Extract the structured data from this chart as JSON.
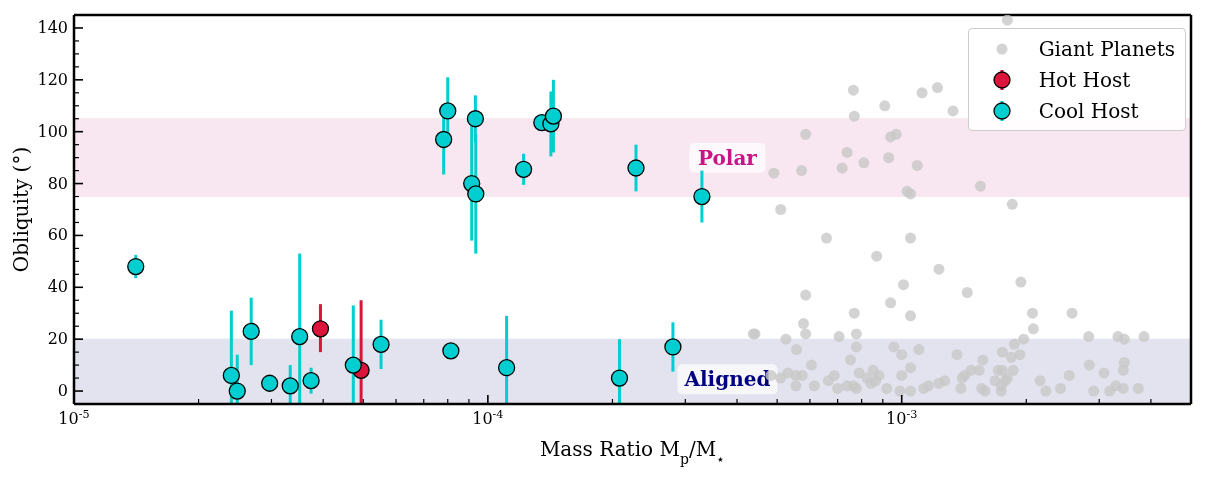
{
  "chart_data": {
    "type": "scatter",
    "xlabel": "Mass Ratio M$_{p}$/M$_{⋆}$",
    "ylabel": "Obliquity (°)",
    "log": "x",
    "legend": "top right",
    "marker": "circle",
    "xlim": [
      1e-05,
      0.005
    ],
    "xticks": [
      {
        "value": 1e-05,
        "label": "10$^{-5}$"
      },
      {
        "value": 2e-05,
        "label": null
      },
      {
        "value": 3e-05,
        "label": null
      },
      {
        "value": 4e-05,
        "label": null
      },
      {
        "value": 5e-05,
        "label": null
      },
      {
        "value": 6e-05,
        "label": null
      },
      {
        "value": 7e-05,
        "label": null
      },
      {
        "value": 8e-05,
        "label": null
      },
      {
        "value": 9e-05,
        "label": null
      },
      {
        "value": 0.0001,
        "label": "10$^{-4}$"
      },
      {
        "value": 0.0002,
        "label": null
      },
      {
        "value": 0.0003,
        "label": null
      },
      {
        "value": 0.0004,
        "label": null
      },
      {
        "value": 0.0005,
        "label": null
      },
      {
        "value": 0.0006,
        "label": null
      },
      {
        "value": 0.0007,
        "label": null
      },
      {
        "value": 0.0008,
        "label": null
      },
      {
        "value": 0.0009,
        "label": null
      },
      {
        "value": 0.001,
        "label": "10$^{-3}$"
      },
      {
        "value": 0.002,
        "label": null
      },
      {
        "value": 0.003,
        "label": null
      },
      {
        "value": 0.004,
        "label": null
      }
    ],
    "ylim": [
      -5,
      145
    ],
    "yticks": [
      0,
      {
        "value": 5,
        "label": null
      },
      {
        "value": 10,
        "label": null
      },
      {
        "value": 15,
        "label": null
      },
      20,
      {
        "value": 25,
        "label": null
      },
      {
        "value": 30,
        "label": null
      },
      {
        "value": 35,
        "label": null
      },
      40,
      {
        "value": 45,
        "label": null
      },
      {
        "value": 50,
        "label": null
      },
      {
        "value": 55,
        "label": null
      },
      60,
      {
        "value": 65,
        "label": null
      },
      {
        "value": 70,
        "label": null
      },
      {
        "value": 75,
        "label": null
      },
      80,
      {
        "value": 85,
        "label": null
      },
      {
        "value": 90,
        "label": null
      },
      {
        "value": 95,
        "label": null
      },
      100,
      {
        "value": 105,
        "label": null
      },
      {
        "value": 110,
        "label": null
      },
      {
        "value": 115,
        "label": null
      },
      120,
      {
        "value": 125,
        "label": null
      },
      {
        "value": 130,
        "label": null
      },
      {
        "value": 135,
        "label": null
      },
      140
    ],
    "bands": [
      {
        "axis": "y",
        "from": 75,
        "to": 105,
        "label": "Polar",
        "color": "#f8e6f0"
      },
      {
        "axis": "y",
        "from": -5,
        "to": 20,
        "label": "Aligned",
        "color": "#e3e3ef"
      }
    ],
    "series": [
      {
        "name": "Giant Planets",
        "color": "#c8c8c8",
        "x": [
          0.0018,
          0.000764,
          0.00112,
          0.00122,
          0.00091,
          0.00133,
          0.000768,
          0.000586,
          0.00097,
          0.00094,
          0.000738,
          0.00081,
          0.00093,
          0.00109,
          0.000491,
          0.000573,
          0.000718,
          0.00155,
          0.00103,
          0.00105,
          0.00051,
          0.00185,
          0.000658,
          0.00105,
          0.00087,
          0.00123,
          0.00194,
          0.00101,
          0.00144,
          0.000586,
          0.00094,
          0.00207,
          0.00258,
          0.000768,
          0.00105,
          0.000579,
          0.00208,
          0.000438,
          0.000442,
          0.000586,
          0.000706,
          0.000777,
          0.00283,
          0.00333,
          0.00345,
          0.00385,
          0.000525,
          0.00197,
          0.00187,
          0.000557,
          0.000777,
          0.000957,
          0.00175,
          0.0011,
          0.001,
          0.00184,
          0.00193,
          0.00136,
          0.00157,
          0.000752,
          0.00284,
          0.00345,
          0.000605,
          0.00105,
          0.00147,
          0.00154,
          0.00171,
          0.00175,
          0.00186,
          0.00308,
          0.00343,
          0.000531,
          0.000555,
          0.000575,
          0.000687,
          0.000789,
          0.000853,
          0.000881,
          0.001,
          0.00254,
          0.000483,
          0.00051,
          0.000824,
          0.000865,
          0.000842,
          0.000665,
          0.00127,
          0.00123,
          0.0014,
          0.00142,
          0.00168,
          0.00178,
          0.0018,
          0.00216,
          0.00343,
          0.00329,
          0.00318,
          0.00291,
          0.00373,
          0.00242,
          0.00223,
          0.000555,
          0.000615,
          0.0007,
          0.000738,
          0.000764,
          0.000777,
          0.00092,
          0.00099,
          0.00105,
          0.00113,
          0.00116,
          0.00139,
          0.00156,
          0.00159,
          0.00174,
          0.00174
        ],
        "values": [
          143,
          116,
          115,
          117,
          110,
          108,
          106,
          99,
          99,
          98,
          92,
          88,
          90,
          87,
          84,
          85,
          86,
          79,
          77,
          76,
          70,
          72,
          59,
          59,
          52,
          47,
          42,
          41,
          38,
          37,
          34,
          30,
          30,
          30,
          29,
          26,
          24,
          22,
          22,
          22,
          21,
          22,
          21,
          21,
          20,
          21,
          20,
          20,
          18,
          16,
          17,
          17,
          15,
          16,
          14,
          13,
          14,
          14,
          12,
          12,
          10,
          11,
          10,
          9,
          8,
          8,
          8,
          8,
          8,
          7,
          8,
          7,
          6,
          6,
          6,
          7,
          8,
          6,
          6,
          6,
          6,
          5,
          5,
          4,
          3,
          4,
          4,
          3,
          5,
          6,
          4,
          4,
          5,
          4,
          1,
          2,
          0,
          0,
          1,
          1,
          0,
          2,
          2,
          1,
          2,
          2,
          1,
          1,
          0,
          0,
          1,
          2,
          1,
          1,
          0,
          0,
          2
        ]
      },
      {
        "name": "Hot Host",
        "color": "#dc143c",
        "x": [
          3.94e-05,
          4.94e-05
        ],
        "values": [
          24,
          8
        ],
        "errors": [
          [
            15,
            33.5
          ],
          [
            -5,
            35
          ]
        ]
      },
      {
        "name": "Cool Host",
        "color": "#00ced1",
        "x": [
          1.41e-05,
          2.4e-05,
          2.48e-05,
          2.68e-05,
          2.97e-05,
          3.33e-05,
          3.51e-05,
          3.74e-05,
          4.73e-05,
          5.52e-05,
          7.82e-05,
          8e-05,
          8.14e-05,
          9.14e-05,
          9.33e-05,
          9.35e-05,
          0.000111,
          0.000122,
          0.000135,
          0.000142,
          0.000144,
          0.000208,
          0.000228,
          0.00028,
          0.000329
        ],
        "values": [
          48,
          6,
          0,
          23,
          3,
          2,
          21,
          4,
          10,
          18,
          97,
          108,
          15.5,
          80,
          105,
          76,
          9,
          85.5,
          103.5,
          103,
          106,
          5,
          86,
          17,
          75
        ],
        "errors": [
          [
            43.5,
            52.5
          ],
          [
            -5,
            31
          ],
          [
            -5,
            14
          ],
          [
            10,
            36
          ],
          null,
          [
            -5,
            10
          ],
          [
            -5,
            53
          ],
          [
            -1,
            9
          ],
          [
            -5,
            33
          ],
          [
            8.5,
            27.5
          ],
          [
            83.5,
            110.5
          ],
          [
            95,
            121
          ],
          null,
          [
            58,
            106
          ],
          [
            96,
            114
          ],
          [
            53,
            99
          ],
          [
            -5,
            29
          ],
          [
            79.5,
            91.5
          ],
          null,
          [
            90.5,
            115.5
          ],
          [
            92,
            120
          ],
          [
            -5,
            20
          ],
          [
            77,
            95
          ],
          [
            7.5,
            26.5
          ],
          [
            65,
            85
          ]
        ]
      }
    ]
  }
}
